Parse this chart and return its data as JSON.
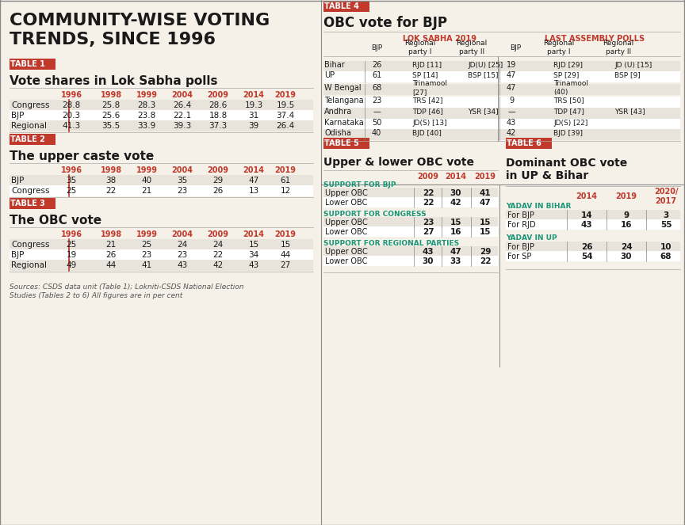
{
  "bg_color": "#f5f0e8",
  "white": "#ffffff",
  "red": "#c0392b",
  "dark_red": "#8b0000",
  "black": "#1a1a1a",
  "gray_row": "#e8e4dc",
  "blue_header": "#2980b9",
  "teal": "#16a085",
  "title": "COMMUNITY-WISE VOTING\nTRENDS, SINCE 1996",
  "table1_label": "TABLE 1",
  "table1_title": "Vote shares in Lok Sabha polls",
  "table1_years": [
    "1996",
    "1998",
    "1999",
    "2004",
    "2009",
    "2014",
    "2019"
  ],
  "table1_rows": [
    [
      "Congress",
      "28.8",
      "25.8",
      "28.3",
      "26.4",
      "28.6",
      "19.3",
      "19.5"
    ],
    [
      "BJP",
      "20.3",
      "25.6",
      "23.8",
      "22.1",
      "18.8",
      "31",
      "37.4"
    ],
    [
      "Regional",
      "41.3",
      "35.5",
      "33.9",
      "39.3",
      "37.3",
      "39",
      "26.4"
    ]
  ],
  "table2_label": "TABLE 2",
  "table2_title": "The upper caste vote",
  "table2_years": [
    "1996",
    "1998",
    "1999",
    "2004",
    "2009",
    "2014",
    "2019"
  ],
  "table2_rows": [
    [
      "BJP",
      "35",
      "38",
      "40",
      "35",
      "29",
      "47",
      "61"
    ],
    [
      "Congress",
      "25",
      "22",
      "21",
      "23",
      "26",
      "13",
      "12"
    ]
  ],
  "table3_label": "TABLE 3",
  "table3_title": "The OBC vote",
  "table3_years": [
    "1996",
    "1998",
    "1999",
    "2004",
    "2009",
    "2014",
    "2019"
  ],
  "table3_rows": [
    [
      "Congress",
      "25",
      "21",
      "25",
      "24",
      "24",
      "15",
      "15"
    ],
    [
      "BJP",
      "19",
      "26",
      "23",
      "23",
      "22",
      "34",
      "44"
    ],
    [
      "Regional",
      "49",
      "44",
      "41",
      "43",
      "42",
      "43",
      "27"
    ]
  ],
  "sources": "Sources: CSDS data unit (Table 1); Lokniti-CSDS National Election\nStudies (Tables 2 to 6) All figures are in per cent",
  "table4_label": "TABLE 4",
  "table4_title": "OBC vote for BJP",
  "table4_section1": "LOK SABHA 2019",
  "table4_section2": "LAST ASSEMBLY POLLS",
  "table4_col_headers": [
    "",
    "BJP",
    "Regional\nparty I",
    "Regional\nparty II",
    "BJP",
    "Regional\nparty I",
    "Regional\nparty II"
  ],
  "table4_rows": [
    [
      "Bihar",
      "26",
      "RJD [11]",
      "JD(U) [25]",
      "19",
      "RJD [29]",
      "JD (U) [15]"
    ],
    [
      "UP",
      "61",
      "SP [14]",
      "BSP [15]",
      "47",
      "SP [29]",
      "BSP [9]"
    ],
    [
      "W Bengal",
      "68",
      "Trinamool\n[27]",
      "",
      "47",
      "Trinamool\n(40)",
      ""
    ],
    [
      "Telangana",
      "23",
      "TRS [42]",
      "",
      "9",
      "TRS [50]",
      ""
    ],
    [
      "Andhra",
      "—",
      "TDP [46]",
      "YSR [34]",
      "—",
      "TDP [47]",
      "YSR [43]"
    ],
    [
      "Karnataka",
      "50",
      "JD(S) [13]",
      "",
      "43",
      "JD(S) [22]",
      ""
    ],
    [
      "Odisha",
      "40",
      "BJD [40]",
      "",
      "42",
      "BJD [39]",
      ""
    ]
  ],
  "table5_label": "TABLE 5",
  "table5_title": "Upper & lower OBC vote",
  "table5_years": [
    "2009",
    "2014",
    "2019"
  ],
  "table5_sections": [
    {
      "header": "SUPPORT FOR BJP",
      "rows": [
        [
          "Upper OBC",
          "22",
          "30",
          "41"
        ],
        [
          "Lower OBC",
          "22",
          "42",
          "47"
        ]
      ]
    },
    {
      "header": "SUPPORT FOR CONGRESS",
      "rows": [
        [
          "Upper OBC",
          "23",
          "15",
          "15"
        ],
        [
          "Lower OBC",
          "27",
          "16",
          "15"
        ]
      ]
    },
    {
      "header": "SUPPORT FOR REGIONAL PARTIES",
      "rows": [
        [
          "Upper OBC",
          "43",
          "47",
          "29"
        ],
        [
          "Lower OBC",
          "30",
          "33",
          "22"
        ]
      ]
    }
  ],
  "table6_label": "TABLE 6",
  "table6_title": "Dominant OBC vote\nin UP & Bihar",
  "table6_years": [
    "2014",
    "2019",
    "2020/\n2017"
  ],
  "table6_sections": [
    {
      "header": "YADAV IN BIHAR",
      "rows": [
        [
          "For BJP",
          "14",
          "9",
          "3"
        ],
        [
          "For RJD",
          "43",
          "16",
          "55"
        ]
      ]
    },
    {
      "header": "YADAV IN UP",
      "rows": [
        [
          "For BJP",
          "26",
          "24",
          "10"
        ],
        [
          "For SP",
          "54",
          "30",
          "68"
        ]
      ]
    }
  ]
}
